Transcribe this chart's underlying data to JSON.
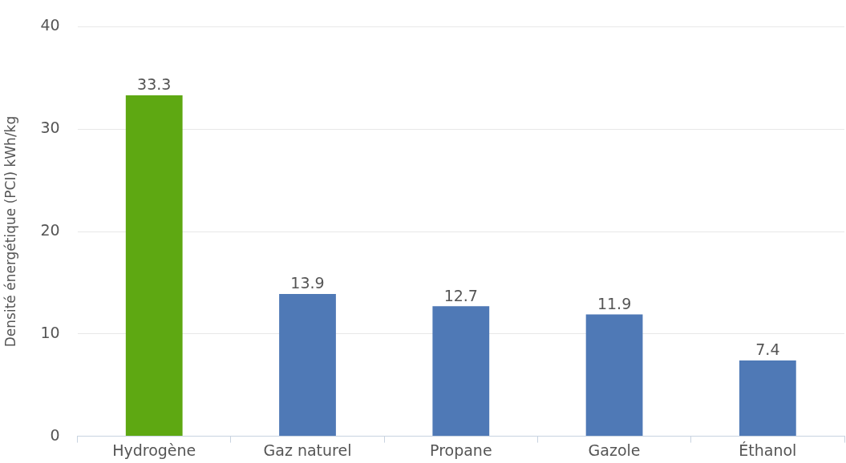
{
  "chart_data": {
    "type": "bar",
    "ylabel": "Densité énergétique (PCI) kWh/kg",
    "categories": [
      "Hydrogène",
      "Gaz naturel",
      "Propane",
      "Gazole",
      "Éthanol"
    ],
    "values": [
      33.3,
      13.9,
      12.7,
      11.9,
      7.4
    ],
    "colors": [
      "#5ea812",
      "#4f79b6",
      "#4f79b6",
      "#4f79b6",
      "#4f79b6"
    ],
    "ylim": [
      0,
      40
    ],
    "yticks": [
      0,
      10,
      20,
      30,
      40
    ],
    "grid": "y",
    "legend": false,
    "data_labels": true
  }
}
